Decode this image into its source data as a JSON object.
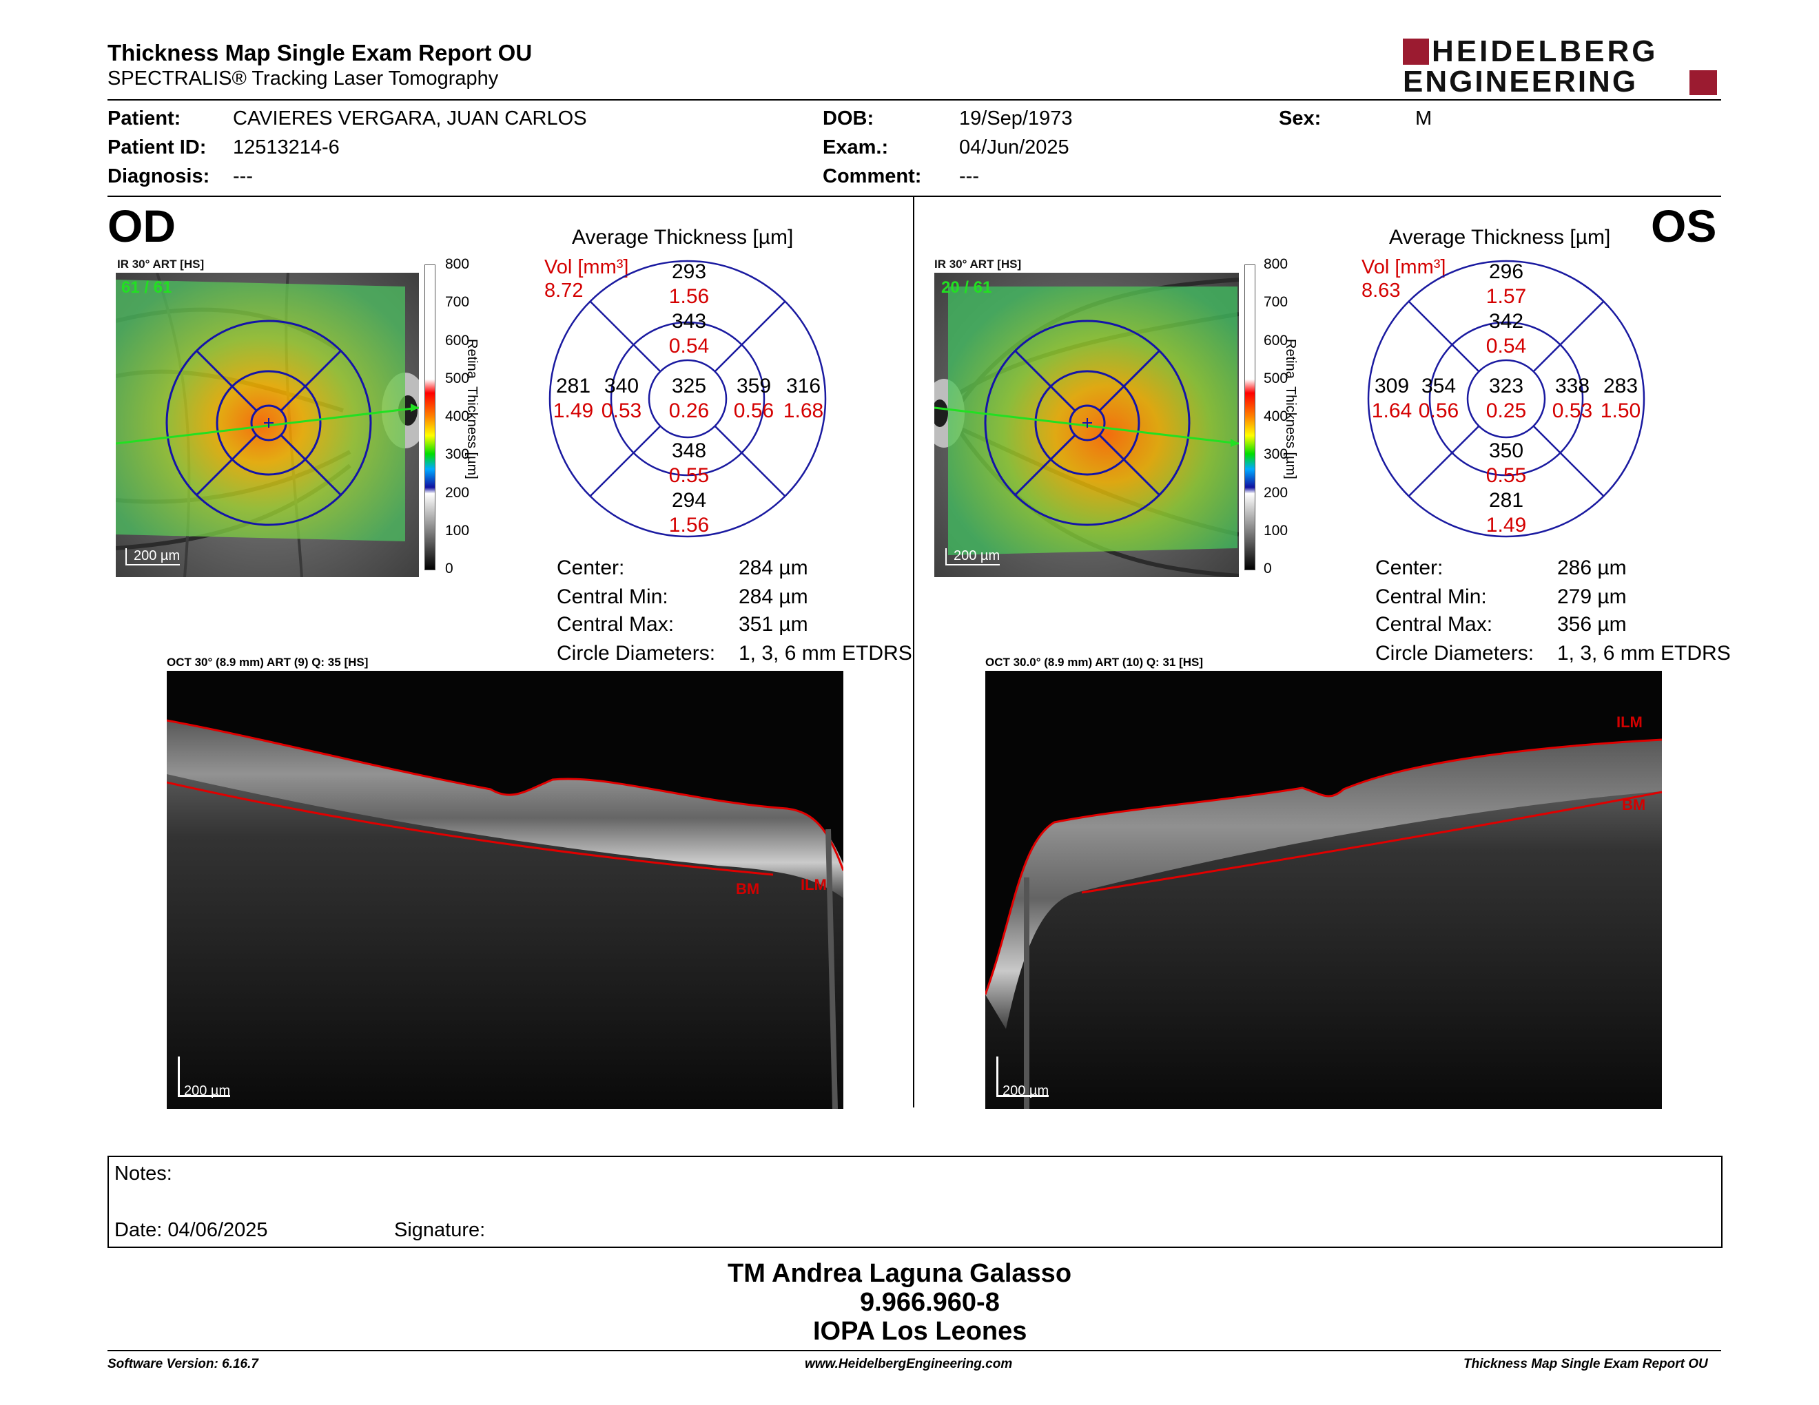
{
  "header": {
    "title": "Thickness Map Single Exam Report OU",
    "subtitle": "SPECTRALIS® Tracking Laser Tomography",
    "logo_line1": "HEIDELBERG",
    "logo_line2": "ENGINEERING"
  },
  "patient": {
    "patient_label": "Patient:",
    "patient_value": "CAVIERES VERGARA, JUAN CARLOS",
    "id_label": "Patient ID:",
    "id_value": "12513214-6",
    "diagnosis_label": "Diagnosis:",
    "diagnosis_value": "---",
    "dob_label": "DOB:",
    "dob_value": "19/Sep/1973",
    "exam_label": "Exam.:",
    "exam_value": "04/Jun/2025",
    "comment_label": "Comment:",
    "comment_value": "---",
    "sex_label": "Sex:",
    "sex_value": "M"
  },
  "colorbar": {
    "ticks": [
      "800",
      "700",
      "600",
      "500",
      "400",
      "300",
      "200",
      "100",
      "0"
    ],
    "label_retina": "Retina",
    "label_thickness": "Thickness [µm]"
  },
  "od": {
    "eye": "OD",
    "ir_label": "IR 30° ART [HS]",
    "ir_frames": "61 / 61",
    "scale": "200 µm",
    "avg_title": "Average Thickness [µm]",
    "vol_label": "Vol [mm³]",
    "vol_value": "8.72",
    "grid": {
      "center": {
        "t": "325",
        "v": "0.26"
      },
      "inner_sup": {
        "t": "343",
        "v": "0.54"
      },
      "inner_inf": {
        "t": "348",
        "v": "0.55"
      },
      "inner_left": {
        "t": "340",
        "v": "0.53"
      },
      "inner_right": {
        "t": "359",
        "v": "0.56"
      },
      "outer_sup": {
        "t": "293",
        "v": "1.56"
      },
      "outer_inf": {
        "t": "294",
        "v": "1.56"
      },
      "outer_left": {
        "t": "281",
        "v": "1.49"
      },
      "outer_right": {
        "t": "316",
        "v": "1.68"
      }
    },
    "stats": {
      "center_label": "Center:",
      "center_value": "284 µm",
      "min_label": "Central Min:",
      "min_value": "284 µm",
      "max_label": "Central Max:",
      "max_value": "351 µm",
      "circ_label": "Circle Diameters:",
      "circ_value": "1, 3, 6 mm ETDRS"
    },
    "oct_label": "OCT 30° (8.9 mm) ART (9) Q: 35 [HS]",
    "oct_bm": "BM",
    "oct_ilm": "ILM",
    "oct_scale": "200 µm"
  },
  "os": {
    "eye": "OS",
    "ir_label": "IR 30° ART [HS]",
    "ir_frames": "20 / 61",
    "scale": "200 µm",
    "avg_title": "Average Thickness [µm]",
    "vol_label": "Vol [mm³]",
    "vol_value": "8.63",
    "grid": {
      "center": {
        "t": "323",
        "v": "0.25"
      },
      "inner_sup": {
        "t": "342",
        "v": "0.54"
      },
      "inner_inf": {
        "t": "350",
        "v": "0.55"
      },
      "inner_left": {
        "t": "354",
        "v": "0.56"
      },
      "inner_right": {
        "t": "338",
        "v": "0.53"
      },
      "outer_sup": {
        "t": "296",
        "v": "1.57"
      },
      "outer_inf": {
        "t": "281",
        "v": "1.49"
      },
      "outer_left": {
        "t": "309",
        "v": "1.64"
      },
      "outer_right": {
        "t": "283",
        "v": "1.50"
      }
    },
    "stats": {
      "center_label": "Center:",
      "center_value": "286 µm",
      "min_label": "Central Min:",
      "min_value": "279 µm",
      "max_label": "Central Max:",
      "max_value": "356 µm",
      "circ_label": "Circle Diameters:",
      "circ_value": "1, 3, 6 mm ETDRS"
    },
    "oct_label": "OCT 30.0° (8.9 mm) ART (10) Q: 31 [HS]",
    "oct_bm": "BM",
    "oct_ilm": "ILM",
    "oct_scale": "200 µm"
  },
  "notes": {
    "notes_label": "Notes:",
    "date_label": "Date: 04/06/2025",
    "signature_label": "Signature:"
  },
  "signer": {
    "name": "TM Andrea Laguna Galasso",
    "rut": "9.966.960-8",
    "org": "IOPA Los Leones"
  },
  "footer": {
    "software": "Software Version: 6.16.7",
    "website": "www.HeidelbergEngineering.com",
    "report": "Thickness Map Single Exam Report OU"
  },
  "colors": {
    "accent_red": "#d40000",
    "logo_red": "#9b1b30",
    "grid_blue": "#1a1aa0",
    "seg_red": "#e00000"
  }
}
